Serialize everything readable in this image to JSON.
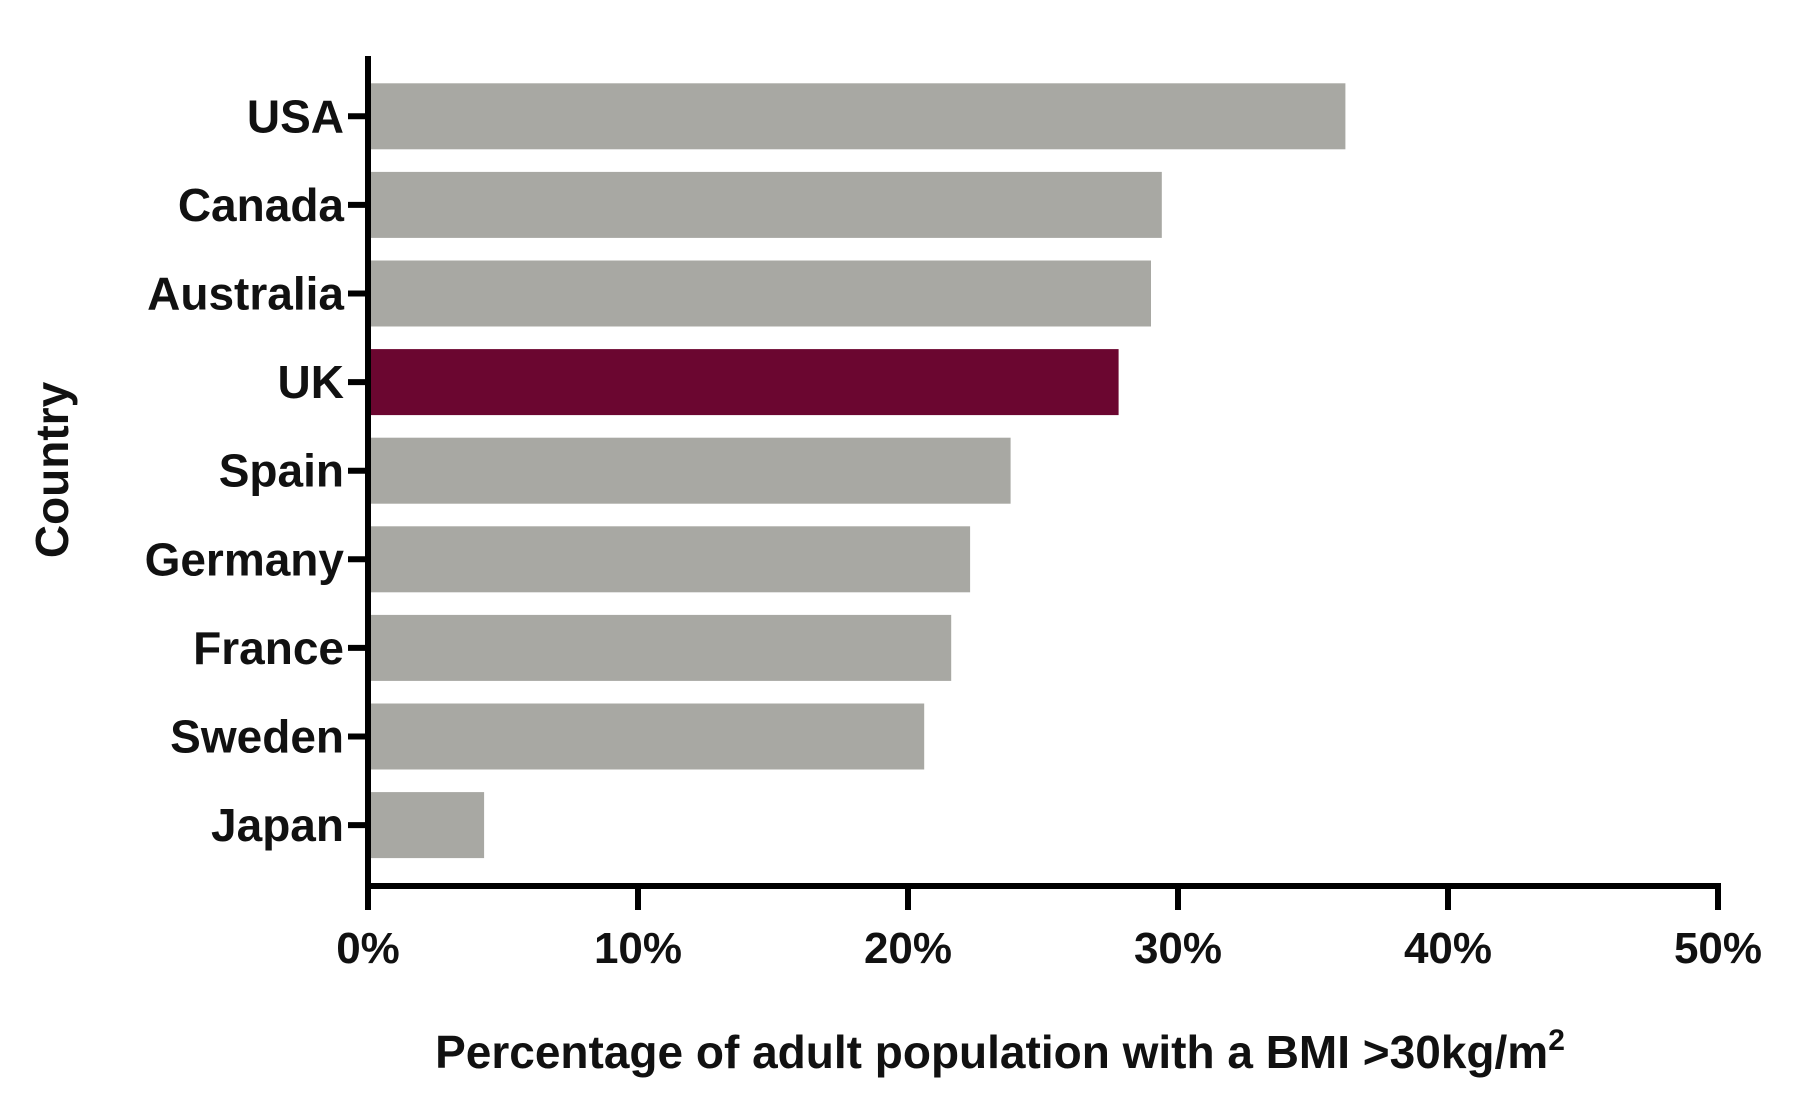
{
  "chart_data": {
    "type": "bar",
    "orientation": "horizontal",
    "categories": [
      "USA",
      "Canada",
      "Australia",
      "UK",
      "Spain",
      "Germany",
      "France",
      "Sweden",
      "Japan"
    ],
    "values": [
      36.2,
      29.4,
      29.0,
      27.8,
      23.8,
      22.3,
      21.6,
      20.6,
      4.3
    ],
    "highlight": "UK",
    "colors": {
      "default_bar": "#a8a8a3",
      "highlight_bar": "#6b0630",
      "axis": "#000000",
      "text": "#111111"
    },
    "xlabel_main": "Percentage of adult population with a BMI >30kg/m",
    "xlabel_sup": "2",
    "ylabel": "Country",
    "xlim": [
      0,
      50
    ],
    "xticks": [
      0,
      10,
      20,
      30,
      40,
      50
    ],
    "xtick_labels": [
      "0%",
      "10%",
      "20%",
      "30%",
      "40%",
      "50%"
    ],
    "grid": false,
    "legend": "none"
  }
}
